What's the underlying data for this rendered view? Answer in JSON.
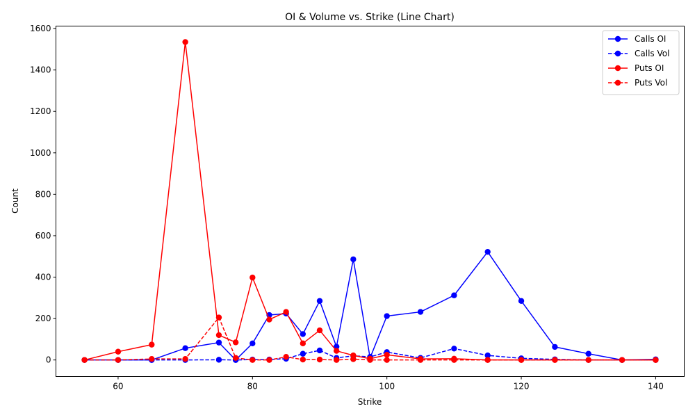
{
  "chart_data": {
    "type": "line",
    "title": "OI & Volume vs. Strike (Line Chart)",
    "xlabel": "Strike",
    "ylabel": "Count",
    "xlim": [
      50.75,
      144.25
    ],
    "ylim": [
      -80,
      1612
    ],
    "xticks": [
      60,
      80,
      100,
      120,
      140
    ],
    "yticks": [
      0,
      200,
      400,
      600,
      800,
      1000,
      1200,
      1400,
      1600
    ],
    "grid": false,
    "legend_position": "top-right",
    "colors": {
      "blue": "#0000ff",
      "red": "#ff0000"
    },
    "x": [
      55,
      60,
      65,
      70,
      75,
      77.5,
      80,
      82.5,
      85,
      87.5,
      90,
      92.5,
      95,
      97.5,
      100,
      105,
      110,
      115,
      120,
      125,
      130,
      135,
      140
    ],
    "series": [
      {
        "name": "Calls OI",
        "color": "#0000ff",
        "style": "solid",
        "values": [
          0,
          0,
          0,
          57,
          84,
          0,
          80,
          217,
          224,
          125,
          285,
          64,
          486,
          10,
          212,
          232,
          312,
          522,
          285,
          63,
          30,
          0,
          3
        ]
      },
      {
        "name": "Calls Vol",
        "color": "#0000ff",
        "style": "dashed",
        "values": [
          0,
          0,
          0,
          0,
          1,
          0,
          2,
          2,
          6,
          30,
          46,
          10,
          20,
          15,
          38,
          10,
          55,
          22,
          8,
          3,
          0,
          0,
          0
        ]
      },
      {
        "name": "Puts OI",
        "color": "#ff0000",
        "style": "solid",
        "values": [
          0,
          40,
          74,
          1535,
          120,
          85,
          398,
          195,
          232,
          80,
          143,
          44,
          22,
          6,
          25,
          5,
          6,
          0,
          0,
          0,
          0,
          0,
          0
        ]
      },
      {
        "name": "Puts Vol",
        "color": "#ff0000",
        "style": "dashed",
        "values": [
          0,
          0,
          5,
          5,
          205,
          10,
          0,
          0,
          15,
          2,
          2,
          0,
          4,
          0,
          0,
          0,
          0,
          0,
          0,
          0,
          0,
          0,
          0
        ]
      }
    ]
  }
}
